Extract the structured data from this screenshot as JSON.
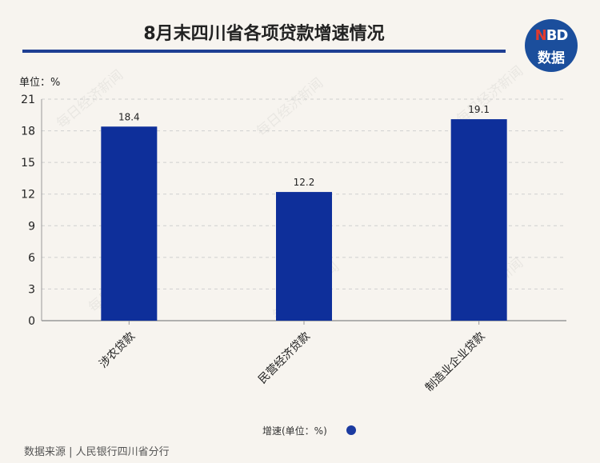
{
  "header": {
    "title": "8月末四川省各项贷款增速情况",
    "logo_top": "NBD",
    "logo_bottom": "数据"
  },
  "unit_label": "单位：%",
  "legend_label": "增速(单位：%)",
  "source": "数据来源 | 人民银行四川省分行",
  "watermark": "每日经济新闻",
  "colors": {
    "bar": "#0e2f9a",
    "rule": "#1f3f93",
    "background": "#f7f4ef"
  },
  "chart_data": {
    "type": "bar",
    "categories": [
      "涉农贷款",
      "民营经济贷款",
      "制造业企业贷款"
    ],
    "series": [
      {
        "name": "增速(单位：%)",
        "values": [
          18.4,
          12.2,
          19.1
        ]
      }
    ],
    "ylim": [
      0,
      21
    ],
    "yticks": [
      0,
      3,
      6,
      9,
      12,
      15,
      18,
      21
    ],
    "ylabel": "单位：%",
    "grid": true,
    "legend_position": "bottom"
  }
}
